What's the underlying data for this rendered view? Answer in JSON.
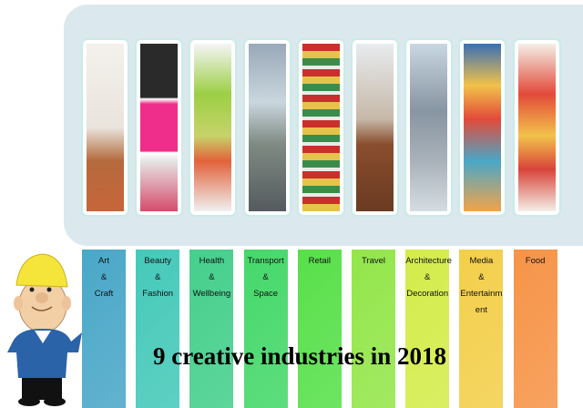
{
  "title": "9 creative industries in 2018",
  "industries": [
    {
      "lines": [
        "Art",
        "&",
        "Craft"
      ],
      "color": "#4aa7c8",
      "image": "bicycle-and-interior"
    },
    {
      "lines": [
        "Beauty",
        "&",
        "Fashion"
      ],
      "color": "#45c9b9",
      "image": "blouses-on-hangers"
    },
    {
      "lines": [
        "Health",
        "&",
        "Wellbeing"
      ],
      "color": "#45cf8c",
      "image": "apple-and-stethoscope"
    },
    {
      "lines": [
        "Transport",
        "&",
        "Space"
      ],
      "color": "#45d86a",
      "image": "highway-city"
    },
    {
      "lines": [
        "Retail"
      ],
      "color": "#58e04a",
      "image": "supermarket-shelves"
    },
    {
      "lines": [
        "Travel"
      ],
      "color": "#93e64a",
      "image": "suitcases-landmarks"
    },
    {
      "lines": [
        "Architecture",
        "&",
        "Decoration"
      ],
      "color": "#d4ec4a",
      "image": "tower-bridge"
    },
    {
      "lines": [
        "Media",
        "&",
        "Entertainm",
        "ent"
      ],
      "color": "#f3cf4a",
      "image": "media-icons"
    },
    {
      "lines": [
        "Food"
      ],
      "color": "#f69448",
      "image": "food-icons"
    }
  ]
}
